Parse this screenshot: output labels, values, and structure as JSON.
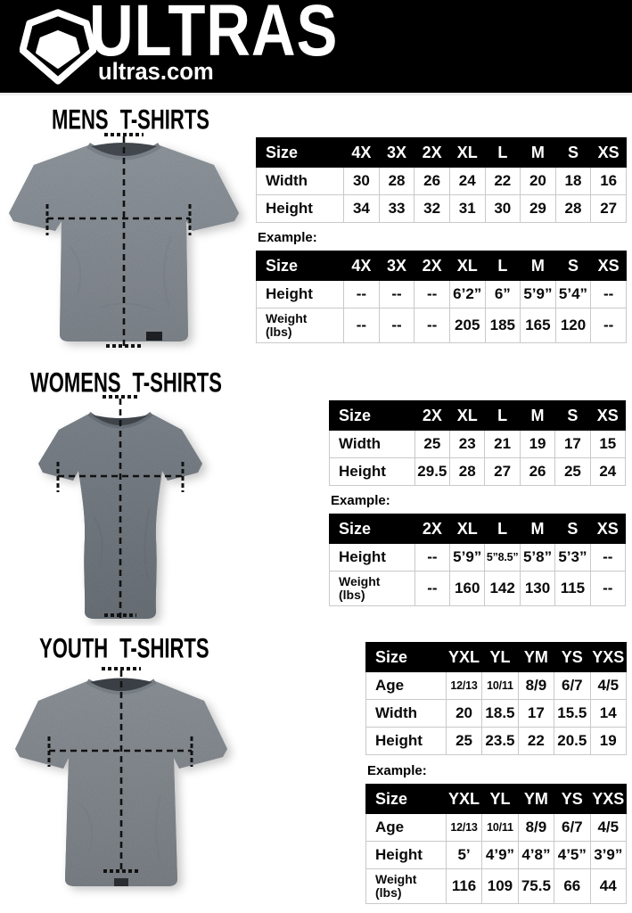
{
  "header": {
    "brand": "ULTRAS",
    "site": "ultras.com",
    "logo_icon": "pentagon-shield-icon",
    "background": "#000000"
  },
  "colors": {
    "table_header_bg": "#000000",
    "table_header_text": "#ffffff",
    "table_border": "#c9c9c9",
    "body_text": "#0a0a0a",
    "mens_shirt": "#8f969d",
    "womens_shirt": "#7b828a",
    "youth_shirt": "#8c9298",
    "measure_line": "#111111"
  },
  "sections": [
    {
      "title": "MENS T-SHIRTS",
      "example_label": "Example:",
      "size_table": {
        "rows": [
          [
            "Size",
            "4X",
            "3X",
            "2X",
            "XL",
            "L",
            "M",
            "S",
            "XS"
          ],
          [
            "Width",
            "30",
            "28",
            "26",
            "24",
            "22",
            "20",
            "18",
            "16"
          ],
          [
            "Height",
            "34",
            "33",
            "32",
            "31",
            "30",
            "29",
            "28",
            "27"
          ]
        ]
      },
      "example_table": {
        "rows": [
          [
            "Size",
            "4X",
            "3X",
            "2X",
            "XL",
            "L",
            "M",
            "S",
            "XS"
          ],
          [
            "Height",
            "--",
            "--",
            "--",
            "6’2”",
            "6”",
            "5’9”",
            "5’4”",
            "--"
          ],
          [
            "Weight\n(lbs)",
            "--",
            "--",
            "--",
            "205",
            "185",
            "165",
            "120",
            "--"
          ]
        ]
      }
    },
    {
      "title": "WOMENS T-SHIRTS",
      "example_label": "Example:",
      "size_table": {
        "rows": [
          [
            "Size",
            "2X",
            "XL",
            "L",
            "M",
            "S",
            "XS"
          ],
          [
            "Width",
            "25",
            "23",
            "21",
            "19",
            "17",
            "15"
          ],
          [
            "Height",
            "29.5",
            "28",
            "27",
            "26",
            "25",
            "24"
          ]
        ]
      },
      "example_table": {
        "rows": [
          [
            "Size",
            "2X",
            "XL",
            "L",
            "M",
            "S",
            "XS"
          ],
          [
            "Height",
            "--",
            "5’9”",
            "5”8.5”",
            "5’8”",
            "5’3”",
            "--"
          ],
          [
            "Weight\n(lbs)",
            "--",
            "160",
            "142",
            "130",
            "115",
            "--"
          ]
        ]
      }
    },
    {
      "title": "YOUTH T-SHIRTS",
      "example_label": "Example:",
      "size_table": {
        "rows": [
          [
            "Size",
            "YXL",
            "YL",
            "YM",
            "YS",
            "YXS"
          ],
          [
            "Age",
            "12/13",
            "10/11",
            "8/9",
            "6/7",
            "4/5"
          ],
          [
            "Width",
            "20",
            "18.5",
            "17",
            "15.5",
            "14"
          ],
          [
            "Height",
            "25",
            "23.5",
            "22",
            "20.5",
            "19"
          ]
        ]
      },
      "example_table": {
        "rows": [
          [
            "Size",
            "YXL",
            "YL",
            "YM",
            "YS",
            "YXS"
          ],
          [
            "Age",
            "12/13",
            "10/11",
            "8/9",
            "6/7",
            "4/5"
          ],
          [
            "Height",
            "5’",
            "4’9”",
            "4’8”",
            "4’5”",
            "3’9”"
          ],
          [
            "Weight\n(lbs)",
            "116",
            "109",
            "75.5",
            "66",
            "44"
          ]
        ]
      }
    }
  ]
}
